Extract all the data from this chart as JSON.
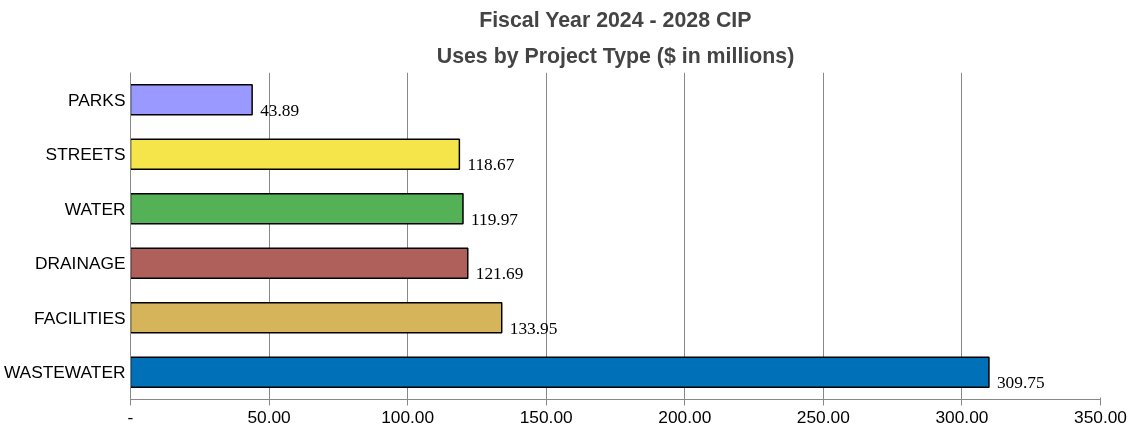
{
  "chart_data": {
    "type": "bar",
    "orientation": "horizontal",
    "title": "Fiscal Year 2024 - 2028 CIP",
    "subtitle": "Uses by Project Type ($ in millions)",
    "categories": [
      "PARKS",
      "STREETS",
      "WATER",
      "DRAINAGE",
      "FACILITIES",
      "WASTEWATER"
    ],
    "values": [
      43.89,
      118.67,
      119.97,
      121.69,
      133.95,
      309.75
    ],
    "colors": [
      "#9999ff",
      "#f5e44a",
      "#55b155",
      "#b0605a",
      "#d6b55a",
      "#0070b8"
    ],
    "xlim": [
      0,
      350
    ],
    "xticks": [
      {
        "value": 0,
        "label": "-"
      },
      {
        "value": 50,
        "label": "50.00"
      },
      {
        "value": 100,
        "label": "100.00"
      },
      {
        "value": 150,
        "label": "150.00"
      },
      {
        "value": 200,
        "label": "200.00"
      },
      {
        "value": 250,
        "label": "250.00"
      },
      {
        "value": 300,
        "label": "300.00"
      },
      {
        "value": 350,
        "label": "350.00"
      }
    ],
    "grid": "x",
    "data_labels": true
  }
}
